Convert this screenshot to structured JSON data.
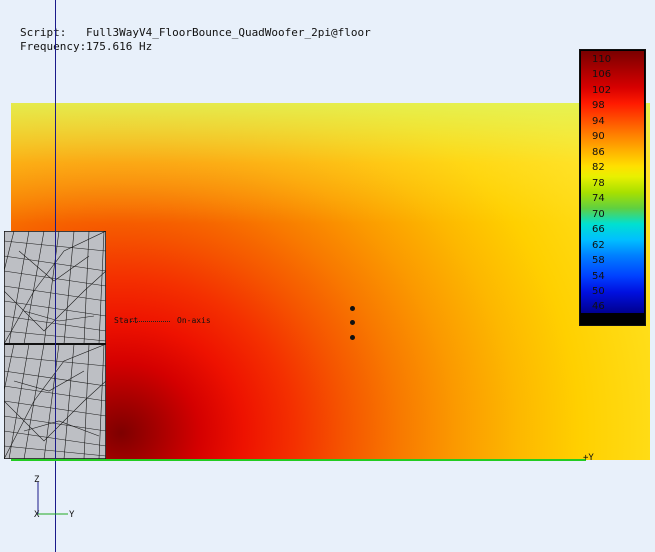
{
  "header": {
    "script_label": "Script:",
    "script_value": "Full3WayV4_FloorBounce_QuadWoofer_2pi@floor",
    "frequency_label": "Frequency:",
    "frequency_value": "175.616 Hz"
  },
  "colorbar": {
    "labels": [
      "110",
      "106",
      "102",
      "98",
      "94",
      "90",
      "86",
      "82",
      "78",
      "74",
      "70",
      "66",
      "62",
      "58",
      "54",
      "50",
      "46"
    ]
  },
  "annotations": {
    "start": "Start",
    "onaxis": "On-axis"
  },
  "axes": {
    "z": "Z",
    "x": "X",
    "y": "Y",
    "floor_y": "+Y"
  }
}
